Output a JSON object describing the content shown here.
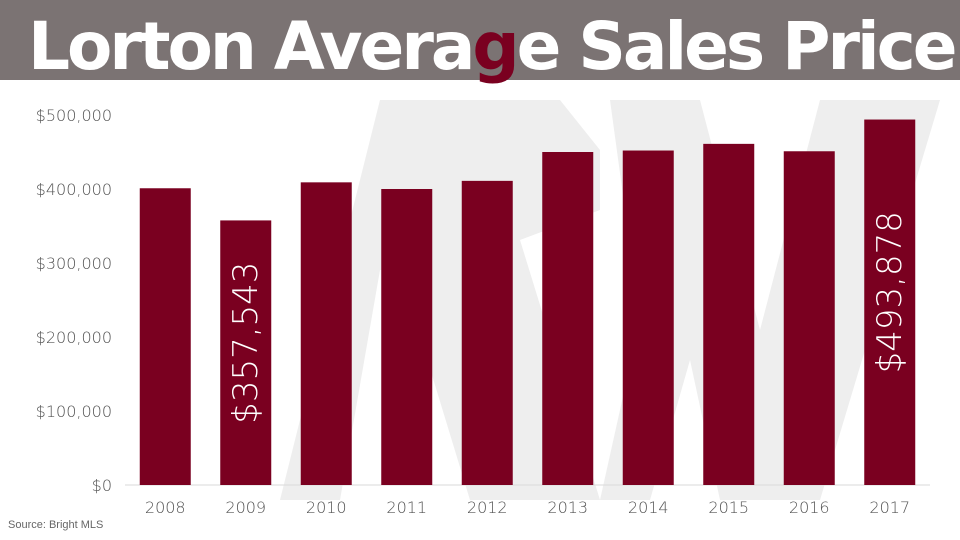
{
  "header": {
    "title_before": "Lorton Avera",
    "title_accent": "g",
    "title_after": "e Sales Price"
  },
  "source": "Source:  Bright MLS",
  "colors": {
    "bar": "#7a0020",
    "header_bg": "#7b7373",
    "title_text": "#ffffff",
    "watermark": "#eeeeee"
  },
  "chart_data": {
    "type": "bar",
    "title": "Lorton Average Sales Price",
    "categories": [
      "2008",
      "2009",
      "2010",
      "2011",
      "2012",
      "2013",
      "2014",
      "2015",
      "2016",
      "2017"
    ],
    "values": [
      401000,
      357543,
      409000,
      400000,
      411000,
      450000,
      452000,
      461000,
      451000,
      493878
    ],
    "ylim": [
      0,
      500000
    ],
    "yticks": [
      0,
      100000,
      200000,
      300000,
      400000,
      500000
    ],
    "ytick_labels": [
      "$0",
      "$100,000",
      "$200,000",
      "$300,000",
      "$400,000",
      "$500,000"
    ],
    "data_labels": [
      {
        "category": "2009",
        "text": "$357,543"
      },
      {
        "category": "2017",
        "text": "$493,878"
      }
    ],
    "grid": false,
    "legend": "none"
  }
}
